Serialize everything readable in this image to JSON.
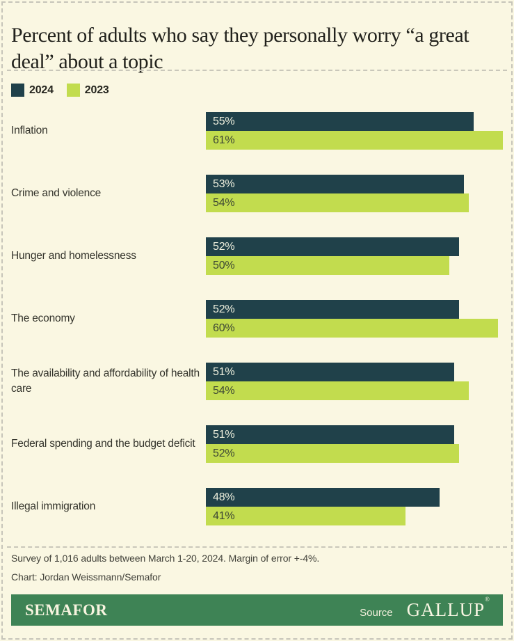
{
  "page": {
    "title": "Percent of adults who say they personally worry “a great deal” about a topic",
    "background_color": "#faf7e2"
  },
  "legend": [
    {
      "label": "2024",
      "color": "#20414a"
    },
    {
      "label": "2023",
      "color": "#c2dc4e"
    }
  ],
  "chart_data": {
    "type": "bar",
    "orientation": "horizontal",
    "title": "Percent of adults who say they personally worry “a great deal” about a topic",
    "categories": [
      "Inflation",
      "Crime and violence",
      "Hunger and homelessness",
      "The economy",
      "The availability and affordability of health care",
      "Federal spending and the budget deficit",
      "Illegal immigration"
    ],
    "series": [
      {
        "name": "2024",
        "color": "#20414a",
        "value_text_color": "#eff0de",
        "values": [
          55,
          53,
          52,
          52,
          51,
          51,
          48
        ]
      },
      {
        "name": "2023",
        "color": "#c2dc4e",
        "value_text_color": "#3d4734",
        "values": [
          61,
          54,
          50,
          60,
          54,
          52,
          41
        ]
      }
    ],
    "value_suffix": "%",
    "xlim": [
      0,
      61
    ],
    "grid": false,
    "legend_position": "top-left",
    "data_labels": "inside-left"
  },
  "footnotes": {
    "line1": "Survey of 1,016 adults between March 1-20, 2024. Margin of error +-4%.",
    "line2": "Chart: Jordan Weissmann/Semafor"
  },
  "footer": {
    "brand": "SEMAFOR",
    "source_label": "Source",
    "source_name": "GALLUP",
    "registered_mark": "®",
    "background": "#3e8355"
  }
}
